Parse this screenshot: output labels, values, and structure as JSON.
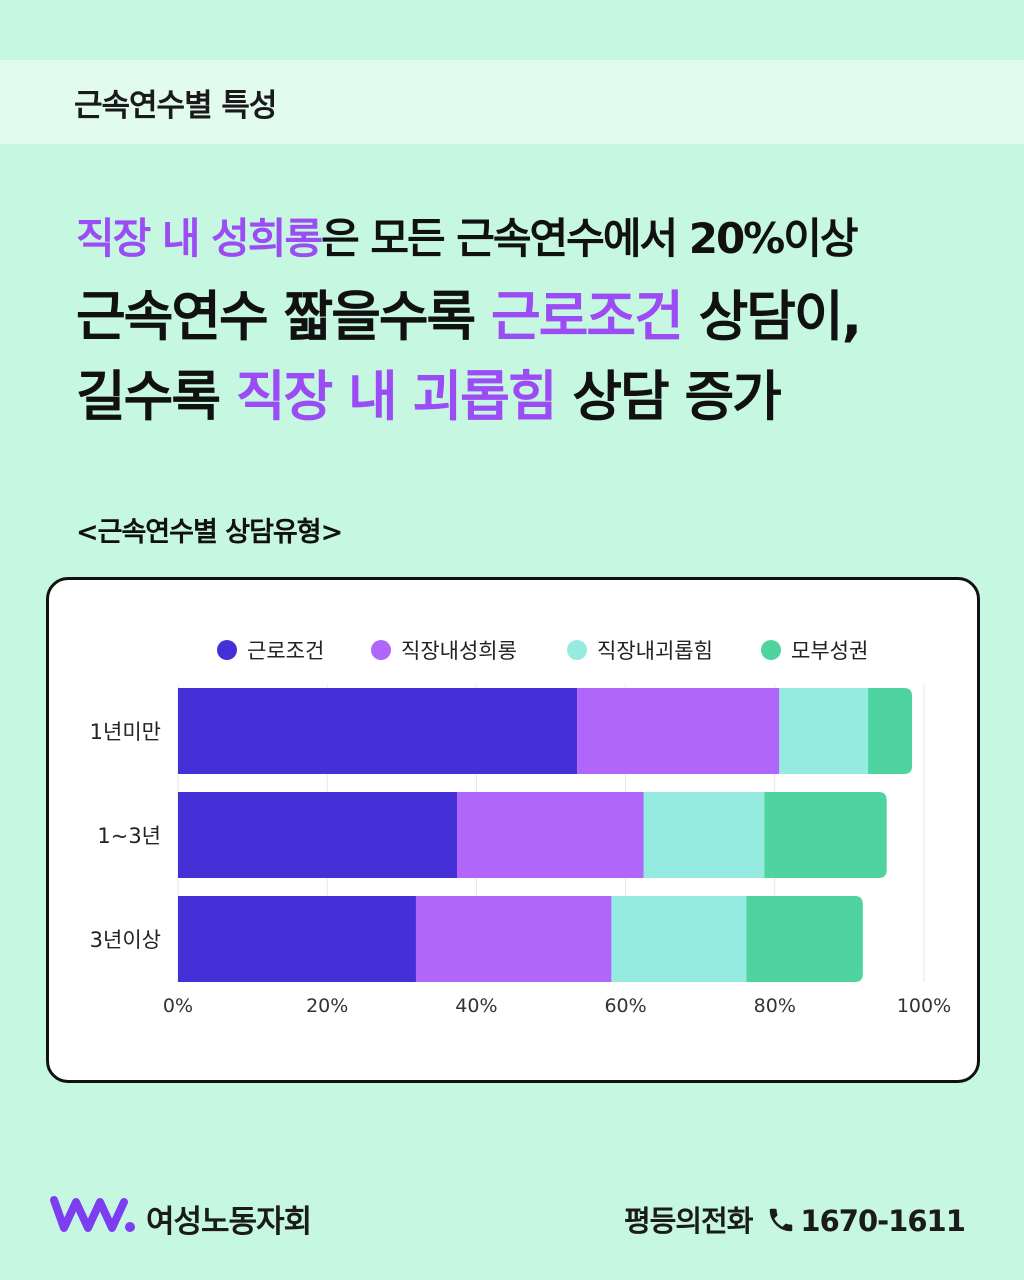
{
  "header": {
    "title": "근속연수별 특성"
  },
  "headline": {
    "line1": {
      "highlight": "직장 내 성희롱",
      "rest": "은 모든 근속연수에서 20%이상"
    },
    "line2": {
      "pre": "근속연수 짧을수록 ",
      "highlight": "근로조건",
      "post": " 상담이,"
    },
    "line3": {
      "pre": "길수록 ",
      "highlight": "직장 내 괴롭힘",
      "post": " 상담 증가"
    }
  },
  "chart_caption": "<근속연수별 상담유형>",
  "colors": {
    "background": "#c6f7e1",
    "highlight": "#9b4cf5",
    "series": [
      "#4530d8",
      "#b066fb",
      "#96ebe1",
      "#4fd39f"
    ]
  },
  "chart_data": {
    "type": "bar",
    "orientation": "horizontal",
    "stacked": true,
    "categories": [
      "1년미만",
      "1~3년",
      "3년이상"
    ],
    "series": [
      {
        "name": "근로조건",
        "values": [
          53.5,
          37.4,
          31.9
        ]
      },
      {
        "name": "직장내성희롱",
        "values": [
          27.1,
          25.0,
          26.2
        ]
      },
      {
        "name": "직장내괴롭힘",
        "values": [
          11.9,
          16.2,
          18.1
        ]
      },
      {
        "name": "모부성권",
        "values": [
          5.9,
          16.4,
          15.6
        ]
      }
    ],
    "x_ticks": [
      "0%",
      "20%",
      "40%",
      "60%",
      "80%",
      "100%"
    ],
    "xlim": [
      0,
      100
    ],
    "legend_position": "top",
    "grid": "vertical"
  },
  "footer": {
    "org_name": "여성노동자회",
    "hotline_label": "평등의전화",
    "phone": "1670-1611",
    "logo_icon": "w-logo-icon",
    "phone_icon": "phone-icon"
  }
}
